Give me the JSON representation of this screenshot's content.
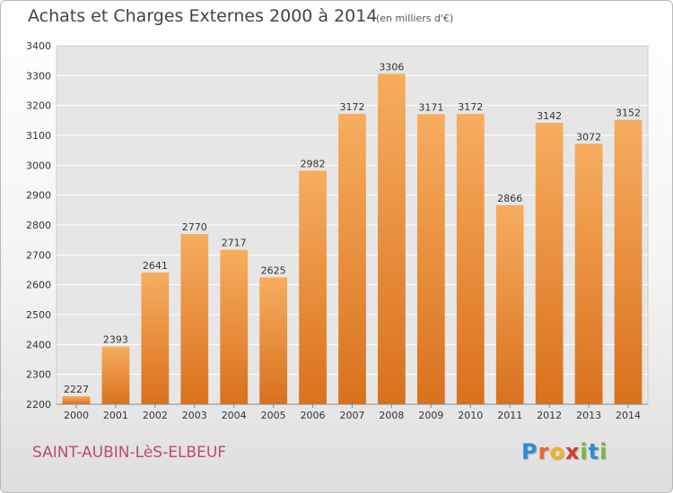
{
  "chart_data": {
    "type": "bar",
    "title": "Achats et Charges Externes 2000 à 2014",
    "subtitle": "(en milliers d'€)",
    "categories": [
      "2000",
      "2001",
      "2002",
      "2003",
      "2004",
      "2005",
      "2006",
      "2007",
      "2008",
      "2009",
      "2010",
      "2011",
      "2012",
      "2013",
      "2014"
    ],
    "values": [
      2227,
      2393,
      2641,
      2770,
      2717,
      2625,
      2982,
      3172,
      3306,
      3171,
      3172,
      2866,
      3142,
      3072,
      3152
    ],
    "ylim": [
      2200,
      3400
    ],
    "yticks": [
      2200,
      2300,
      2400,
      2500,
      2600,
      2700,
      2800,
      2900,
      3000,
      3100,
      3200,
      3300,
      3400
    ],
    "grid": true,
    "bar_color_light": "#f7ad5f",
    "bar_color_dark": "#d9711d"
  },
  "footer": {
    "commune": "SAINT-AUBIN-LèS-ELBEUF"
  },
  "logo": {
    "letters": [
      {
        "ch": "P",
        "color": "#2a8fd4"
      },
      {
        "ch": "r",
        "color": "#e8672a"
      },
      {
        "ch": "o",
        "color": "#f2b21f"
      },
      {
        "ch": "x",
        "color": "#d23c2d"
      },
      {
        "ch": "i",
        "color": "#79b83a"
      },
      {
        "ch": "t",
        "color": "#2a8fd4"
      },
      {
        "ch": "i",
        "color": "#79b83a"
      }
    ]
  }
}
